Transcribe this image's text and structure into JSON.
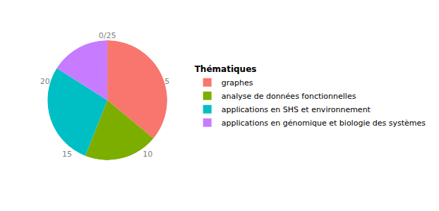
{
  "chart_data": {
    "type": "pie",
    "legend_title": "Thématiques",
    "categories": [
      "graphes",
      "analyse de données fonctionnelles",
      "applications en SHS et environnement",
      "applications en génomique et biologie des systèmes"
    ],
    "values": [
      9,
      5,
      7,
      4
    ],
    "colors": [
      "#F8766D",
      "#7CAE00",
      "#00BFC4",
      "#C77CFF"
    ],
    "ylim": [
      0,
      25
    ],
    "yticks": [
      {
        "value": 0,
        "label": "0/25"
      },
      5,
      10,
      15,
      20
    ],
    "legend": "right"
  }
}
